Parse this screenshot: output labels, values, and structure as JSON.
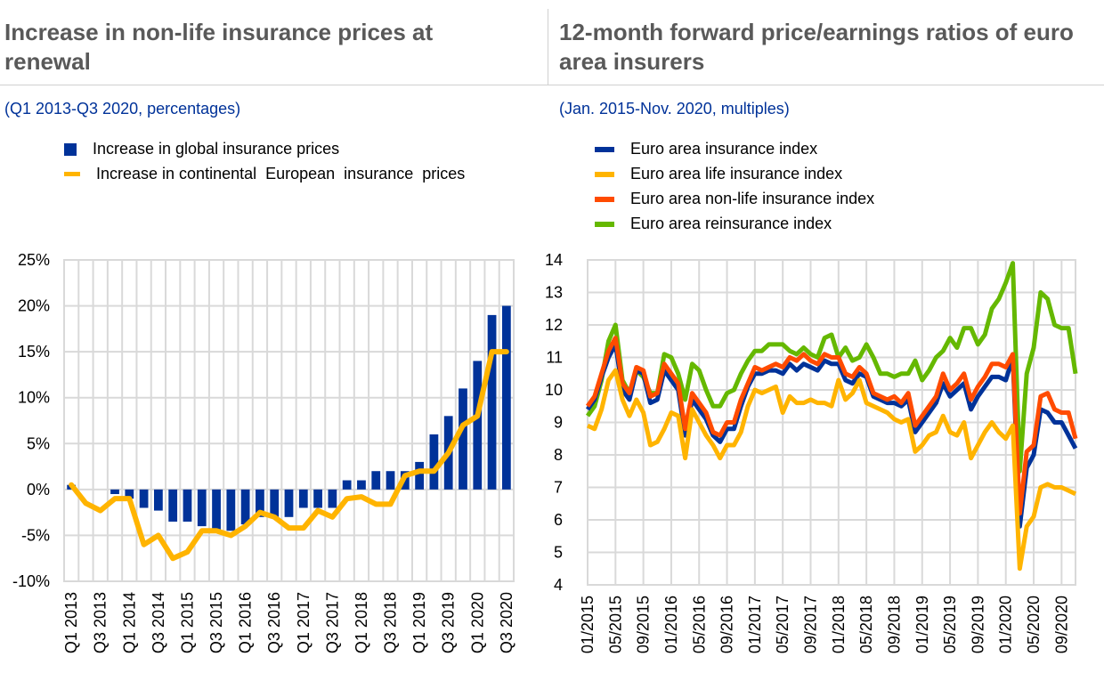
{
  "chart_data": [
    {
      "type": "bar",
      "title": "Increase in non-life insurance prices at renewal",
      "subtitle": "(Q1 2013-Q3 2020, percentages)",
      "ylim": [
        -10,
        25
      ],
      "yticks": [
        "-10%",
        "-5%",
        "0%",
        "5%",
        "10%",
        "15%",
        "20%",
        "25%"
      ],
      "ytick_values": [
        -10,
        -5,
        0,
        5,
        10,
        15,
        20,
        25
      ],
      "categories": [
        "Q1 2013",
        "Q2 2013",
        "Q3 2013",
        "Q4 2013",
        "Q1 2014",
        "Q2 2014",
        "Q3 2014",
        "Q4 2014",
        "Q1 2015",
        "Q2 2015",
        "Q3 2015",
        "Q4 2015",
        "Q1 2016",
        "Q2 2016",
        "Q3 2016",
        "Q4 2016",
        "Q1 2017",
        "Q2 2017",
        "Q3 2017",
        "Q4 2017",
        "Q1 2018",
        "Q2 2018",
        "Q3 2018",
        "Q4 2018",
        "Q1 2019",
        "Q2 2019",
        "Q3 2019",
        "Q4 2019",
        "Q1 2020",
        "Q2 2020",
        "Q3 2020"
      ],
      "series": [
        {
          "name": "Increase in global insurance prices",
          "type": "bar",
          "color": "#003299",
          "values": [
            0.5,
            0,
            0,
            -0.5,
            -1,
            -2,
            -2.3,
            -3.5,
            -3.5,
            -4,
            -4.5,
            -4.5,
            -3.8,
            -3,
            -3,
            -3,
            -2,
            -2,
            -2,
            1,
            1,
            2,
            2,
            2,
            3,
            6,
            8,
            11,
            14,
            19,
            20
          ]
        },
        {
          "name": "Increase in continental  European  insurance  prices",
          "type": "line",
          "color": "#ffb400",
          "values": [
            0.5,
            -1.5,
            -2.3,
            -1,
            -1,
            -6,
            -5,
            -7.5,
            -6.8,
            -4.5,
            -4.5,
            -5,
            -4,
            -2.5,
            -3,
            -4.2,
            -4.2,
            -2.3,
            -3,
            -1,
            -0.8,
            -1.6,
            -1.6,
            1.5,
            2,
            2,
            4,
            7,
            8,
            15,
            15
          ]
        }
      ]
    },
    {
      "type": "line",
      "title": "12-month forward price/earnings ratios of euro area insurers",
      "subtitle": "(Jan. 2015-Nov. 2020, multiples)",
      "ylim": [
        4,
        14
      ],
      "yticks": [
        "4",
        "5",
        "6",
        "7",
        "8",
        "9",
        "10",
        "11",
        "12",
        "13",
        "14"
      ],
      "xstart": "01/2015",
      "xtick_labels": [
        "01/2015",
        "05/2015",
        "09/2015",
        "01/2016",
        "05/2016",
        "09/2016",
        "01/2017",
        "05/2017",
        "09/2017",
        "01/2018",
        "05/2018",
        "09/2018",
        "01/2019",
        "05/2019",
        "09/2019",
        "01/2020",
        "05/2020",
        "09/2020"
      ],
      "series": [
        {
          "name": "Euro area insurance index",
          "color": "#003299",
          "values": [
            9.4,
            9.7,
            10.4,
            11,
            11.4,
            10,
            9.7,
            10.6,
            10.5,
            9.6,
            9.7,
            10.6,
            10.3,
            10,
            8.6,
            9.7,
            9.4,
            9.1,
            8.6,
            8.4,
            8.8,
            8.8,
            9.5,
            10.1,
            10.5,
            10.5,
            10.6,
            10.6,
            10.5,
            10.8,
            10.6,
            10.8,
            10.7,
            10.6,
            10.9,
            10.8,
            10.8,
            10.3,
            10.2,
            10.5,
            10.4,
            9.8,
            9.7,
            9.6,
            9.6,
            9.5,
            9.7,
            8.7,
            9,
            9.3,
            9.6,
            10.2,
            9.8,
            10,
            10.2,
            9.4,
            9.8,
            10.1,
            10.4,
            10.4,
            10.3,
            11,
            5.8,
            7.6,
            8,
            9.4,
            9.3,
            9,
            9,
            8.6,
            8.2
          ]
        },
        {
          "name": "Euro area life insurance index",
          "color": "#ffb400",
          "values": [
            8.9,
            8.8,
            9.4,
            10.3,
            10.6,
            9.7,
            9.2,
            9.7,
            9.3,
            8.3,
            8.4,
            8.8,
            9.3,
            9.2,
            7.9,
            9.4,
            9,
            8.6,
            8.3,
            7.9,
            8.3,
            8.3,
            8.7,
            9.5,
            10,
            9.9,
            10,
            10.1,
            9.3,
            9.8,
            9.6,
            9.6,
            9.7,
            9.6,
            9.6,
            9.5,
            10.3,
            9.7,
            9.9,
            10.3,
            9.6,
            9.5,
            9.4,
            9.3,
            9.1,
            9,
            9.1,
            8.1,
            8.3,
            8.6,
            8.7,
            9.2,
            8.7,
            8.6,
            9,
            7.9,
            8.3,
            8.7,
            9,
            8.7,
            8.5,
            8.9,
            4.5,
            5.8,
            6.1,
            7,
            7.1,
            7,
            7,
            6.9,
            6.8
          ]
        },
        {
          "name": "Euro area non-life insurance index",
          "color": "#ff4b00",
          "values": [
            9.5,
            9.8,
            10.5,
            11.2,
            11.6,
            10.2,
            9.9,
            10.7,
            10.6,
            9.8,
            9.9,
            10.8,
            10.5,
            10.2,
            8.8,
            9.9,
            9.6,
            9.3,
            8.7,
            8.6,
            9,
            9,
            9.7,
            10.2,
            10.7,
            10.6,
            10.7,
            10.8,
            10.7,
            11,
            10.9,
            11.1,
            10.9,
            10.8,
            11.1,
            11,
            11,
            10.5,
            10.4,
            10.7,
            10.5,
            9.9,
            9.8,
            9.7,
            9.8,
            9.6,
            9.9,
            8.9,
            9.2,
            9.5,
            9.8,
            10.5,
            10,
            10.2,
            10.5,
            9.7,
            10.1,
            10.4,
            10.8,
            10.8,
            10.7,
            11.1,
            6.2,
            8.1,
            8.3,
            9.8,
            9.9,
            9.4,
            9.3,
            9.3,
            8.5
          ]
        },
        {
          "name": "Euro area reinsurance index",
          "color": "#65b800",
          "values": [
            9.2,
            9.5,
            10.3,
            11.5,
            12,
            10.3,
            9.9,
            10.6,
            10.4,
            9.9,
            9.9,
            11.1,
            11,
            10.5,
            9.7,
            10.8,
            10.6,
            10,
            9.5,
            9.5,
            9.9,
            10,
            10.5,
            10.9,
            11.2,
            11.2,
            11.4,
            11.4,
            11.4,
            11.2,
            11.1,
            11.3,
            11.1,
            11,
            11.6,
            11.7,
            11,
            11.3,
            10.9,
            11,
            11.4,
            11,
            10.5,
            10.5,
            10.4,
            10.5,
            10.5,
            10.9,
            10.3,
            10.6,
            11,
            11.2,
            11.6,
            11.3,
            11.9,
            11.9,
            11.4,
            11.7,
            12.5,
            12.8,
            13.3,
            13.9,
            7.5,
            10.5,
            11.3,
            13,
            12.8,
            12,
            11.9,
            11.9,
            10.5
          ]
        }
      ]
    }
  ]
}
